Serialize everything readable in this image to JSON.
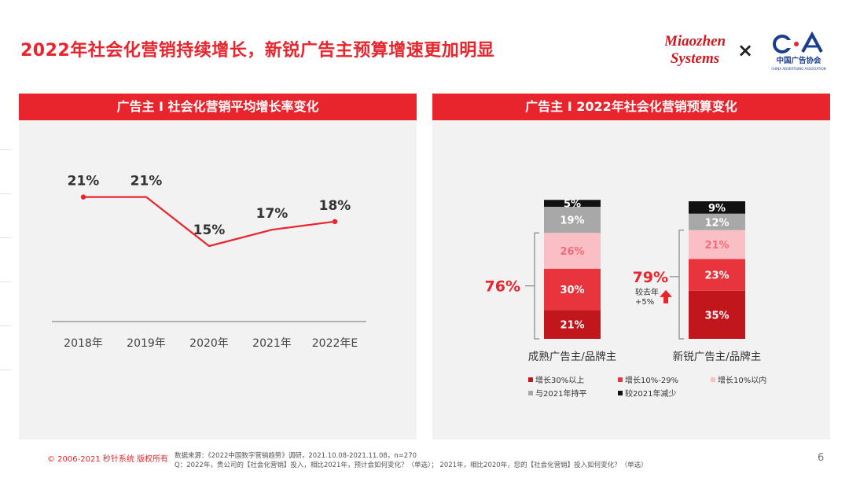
{
  "page": {
    "title": "2022年社会化营销持续增长，新锐广告主预算增速更加明显",
    "page_number": "6",
    "footer_copyright": "© 2006-2021 秒针系统 版权所有",
    "footer_source_line1": "数据来源：《2022中国数字营销趋势》调研，2021.10.08-2021.11.08，n=270",
    "footer_source_line2": "Q：2022年，贵公司的【社会化营销】投入，相比2021年，预计会如何变化？（单选）；  2021年，相比2020年，您的【社会化营销】投入如何变化？（单选）"
  },
  "logos": {
    "miaozhen_line1": "Miaozhen",
    "miaozhen_line2": "Systems",
    "times": "×",
    "caa_cn": "中国广告协会",
    "caa_en": "CHINA ADVERTISING ASSOCIATION"
  },
  "colors": {
    "brand_red": "#e8242c",
    "dark_red": "#c0161c",
    "pink": "#f9bfc5",
    "gray": "#a8a8a8",
    "black": "#111111",
    "panel_bg": "#f2f2f2"
  },
  "chart_data": [
    {
      "type": "line",
      "title": "广告主 I 社会化营销平均增长率变化",
      "categories": [
        "2018年",
        "2019年",
        "2020年",
        "2021年",
        "2022年E"
      ],
      "series": [
        {
          "values": [
            21,
            21,
            15,
            17,
            18
          ]
        }
      ],
      "data_labels": [
        "21%",
        "21%",
        "15%",
        "17%",
        "18%"
      ],
      "color": "#e8242c",
      "grid": false
    },
    {
      "type": "bar",
      "stacked": true,
      "title": "广告主 I 2022年社会化营销预算变化",
      "categories": [
        "成熟广告主/品牌主",
        "新锐广告主/品牌主"
      ],
      "series": [
        {
          "name": "增长30%以上",
          "values": [
            21,
            35
          ],
          "color": "#c0161c"
        },
        {
          "name": "增长10%-29%",
          "values": [
            30,
            23
          ],
          "color": "#e8343c"
        },
        {
          "name": "增长10%以内",
          "values": [
            26,
            21
          ],
          "color": "#f9bfc5"
        },
        {
          "name": "与2021年持平",
          "values": [
            19,
            12
          ],
          "color": "#a8a8a8"
        },
        {
          "name": "较2021年减少",
          "values": [
            5,
            9
          ],
          "color": "#111111"
        }
      ],
      "legend_position": "bottom",
      "annotations": {
        "mature_total": "76%",
        "new_total": "79%",
        "new_note_line1": "较去年",
        "new_note_line2": "+5%"
      }
    }
  ]
}
